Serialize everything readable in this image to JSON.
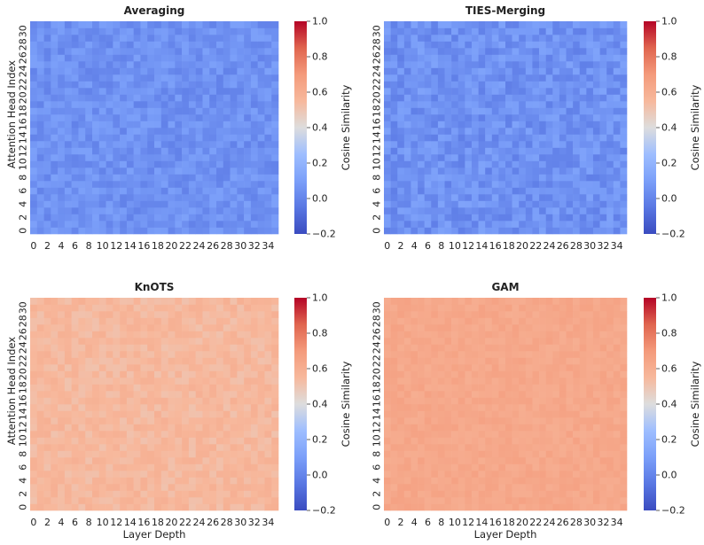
{
  "chart_data": [
    {
      "type": "heatmap",
      "title": "Averaging",
      "xlabel": "",
      "ylabel": "Attention Head Index",
      "colorbar_label": "Cosine Similarity",
      "colormap": "coolwarm",
      "vmin": -0.2,
      "vmax": 1.0,
      "colorbar_ticks": [
        "−0.2",
        "0.0",
        "0.2",
        "0.4",
        "0.6",
        "0.8",
        "1.0"
      ],
      "x_ticks": [
        "0",
        "2",
        "4",
        "6",
        "8",
        "10",
        "12",
        "14",
        "16",
        "18",
        "20",
        "22",
        "24",
        "26",
        "28",
        "30",
        "32",
        "34"
      ],
      "y_ticks": [
        "0",
        "2",
        "4",
        "6",
        "8",
        "10",
        "12",
        "14",
        "16",
        "18",
        "20",
        "22",
        "24",
        "26",
        "28",
        "30"
      ],
      "n_cols": 36,
      "n_rows": 32,
      "value_center": 0.05,
      "value_spread": 0.06
    },
    {
      "type": "heatmap",
      "title": "TIES-Merging",
      "xlabel": "",
      "ylabel": "",
      "colorbar_label": "Cosine Similarity",
      "colormap": "coolwarm",
      "vmin": -0.2,
      "vmax": 1.0,
      "colorbar_ticks": [
        "−0.2",
        "0.0",
        "0.2",
        "0.4",
        "0.6",
        "0.8",
        "1.0"
      ],
      "x_ticks": [
        "0",
        "2",
        "4",
        "6",
        "8",
        "10",
        "12",
        "14",
        "16",
        "18",
        "20",
        "22",
        "24",
        "26",
        "28",
        "30",
        "32",
        "34"
      ],
      "y_ticks": [
        "0",
        "2",
        "4",
        "6",
        "8",
        "10",
        "12",
        "14",
        "16",
        "18",
        "20",
        "22",
        "24",
        "26",
        "28",
        "30"
      ],
      "n_cols": 36,
      "n_rows": 32,
      "value_center": 0.05,
      "value_spread": 0.07
    },
    {
      "type": "heatmap",
      "title": "KnOTS",
      "xlabel": "Layer Depth",
      "ylabel": "Attention Head Index",
      "colorbar_label": "Cosine Similarity",
      "colormap": "coolwarm",
      "vmin": -0.2,
      "vmax": 1.0,
      "colorbar_ticks": [
        "−0.2",
        "0.0",
        "0.2",
        "0.4",
        "0.6",
        "0.8",
        "1.0"
      ],
      "x_ticks": [
        "0",
        "2",
        "4",
        "6",
        "8",
        "10",
        "12",
        "14",
        "16",
        "18",
        "20",
        "22",
        "24",
        "26",
        "28",
        "30",
        "32",
        "34"
      ],
      "y_ticks": [
        "0",
        "2",
        "4",
        "6",
        "8",
        "10",
        "12",
        "14",
        "16",
        "18",
        "20",
        "22",
        "24",
        "26",
        "28",
        "30"
      ],
      "n_cols": 36,
      "n_rows": 32,
      "value_center": 0.55,
      "value_spread": 0.04
    },
    {
      "type": "heatmap",
      "title": "GAM",
      "xlabel": "Layer Depth",
      "ylabel": "",
      "colorbar_label": "Cosine Similarity",
      "colormap": "coolwarm",
      "vmin": -0.2,
      "vmax": 1.0,
      "colorbar_ticks": [
        "−0.2",
        "0.0",
        "0.2",
        "0.4",
        "0.6",
        "0.8",
        "1.0"
      ],
      "x_ticks": [
        "0",
        "2",
        "4",
        "6",
        "8",
        "10",
        "12",
        "14",
        "16",
        "18",
        "20",
        "22",
        "24",
        "26",
        "28",
        "30",
        "32",
        "34"
      ],
      "y_ticks": [
        "0",
        "2",
        "4",
        "6",
        "8",
        "10",
        "12",
        "14",
        "16",
        "18",
        "20",
        "22",
        "24",
        "26",
        "28",
        "30"
      ],
      "n_cols": 36,
      "n_rows": 32,
      "value_center": 0.63,
      "value_spread": 0.03
    }
  ]
}
